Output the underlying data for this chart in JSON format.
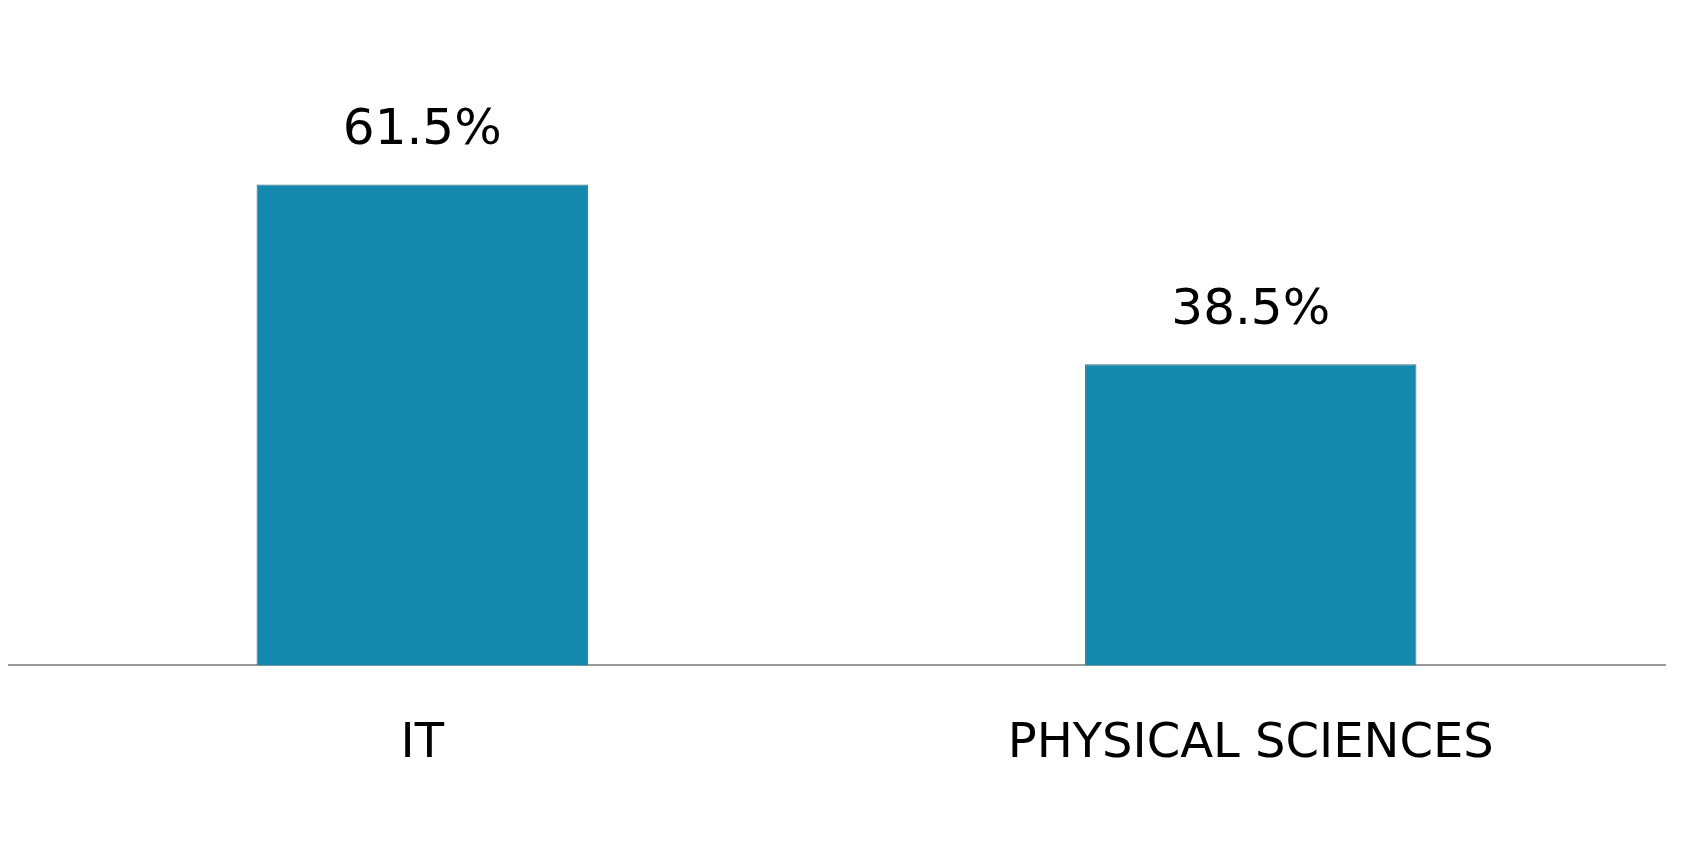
{
  "chart_data": {
    "type": "bar",
    "categories": [
      "IT",
      "PHYSICAL SCIENCES"
    ],
    "values": [
      61.5,
      38.5
    ],
    "color": "#1489ad",
    "value_labels": [
      "61.5%",
      "38.5%"
    ],
    "legend": false,
    "grid": false
  }
}
